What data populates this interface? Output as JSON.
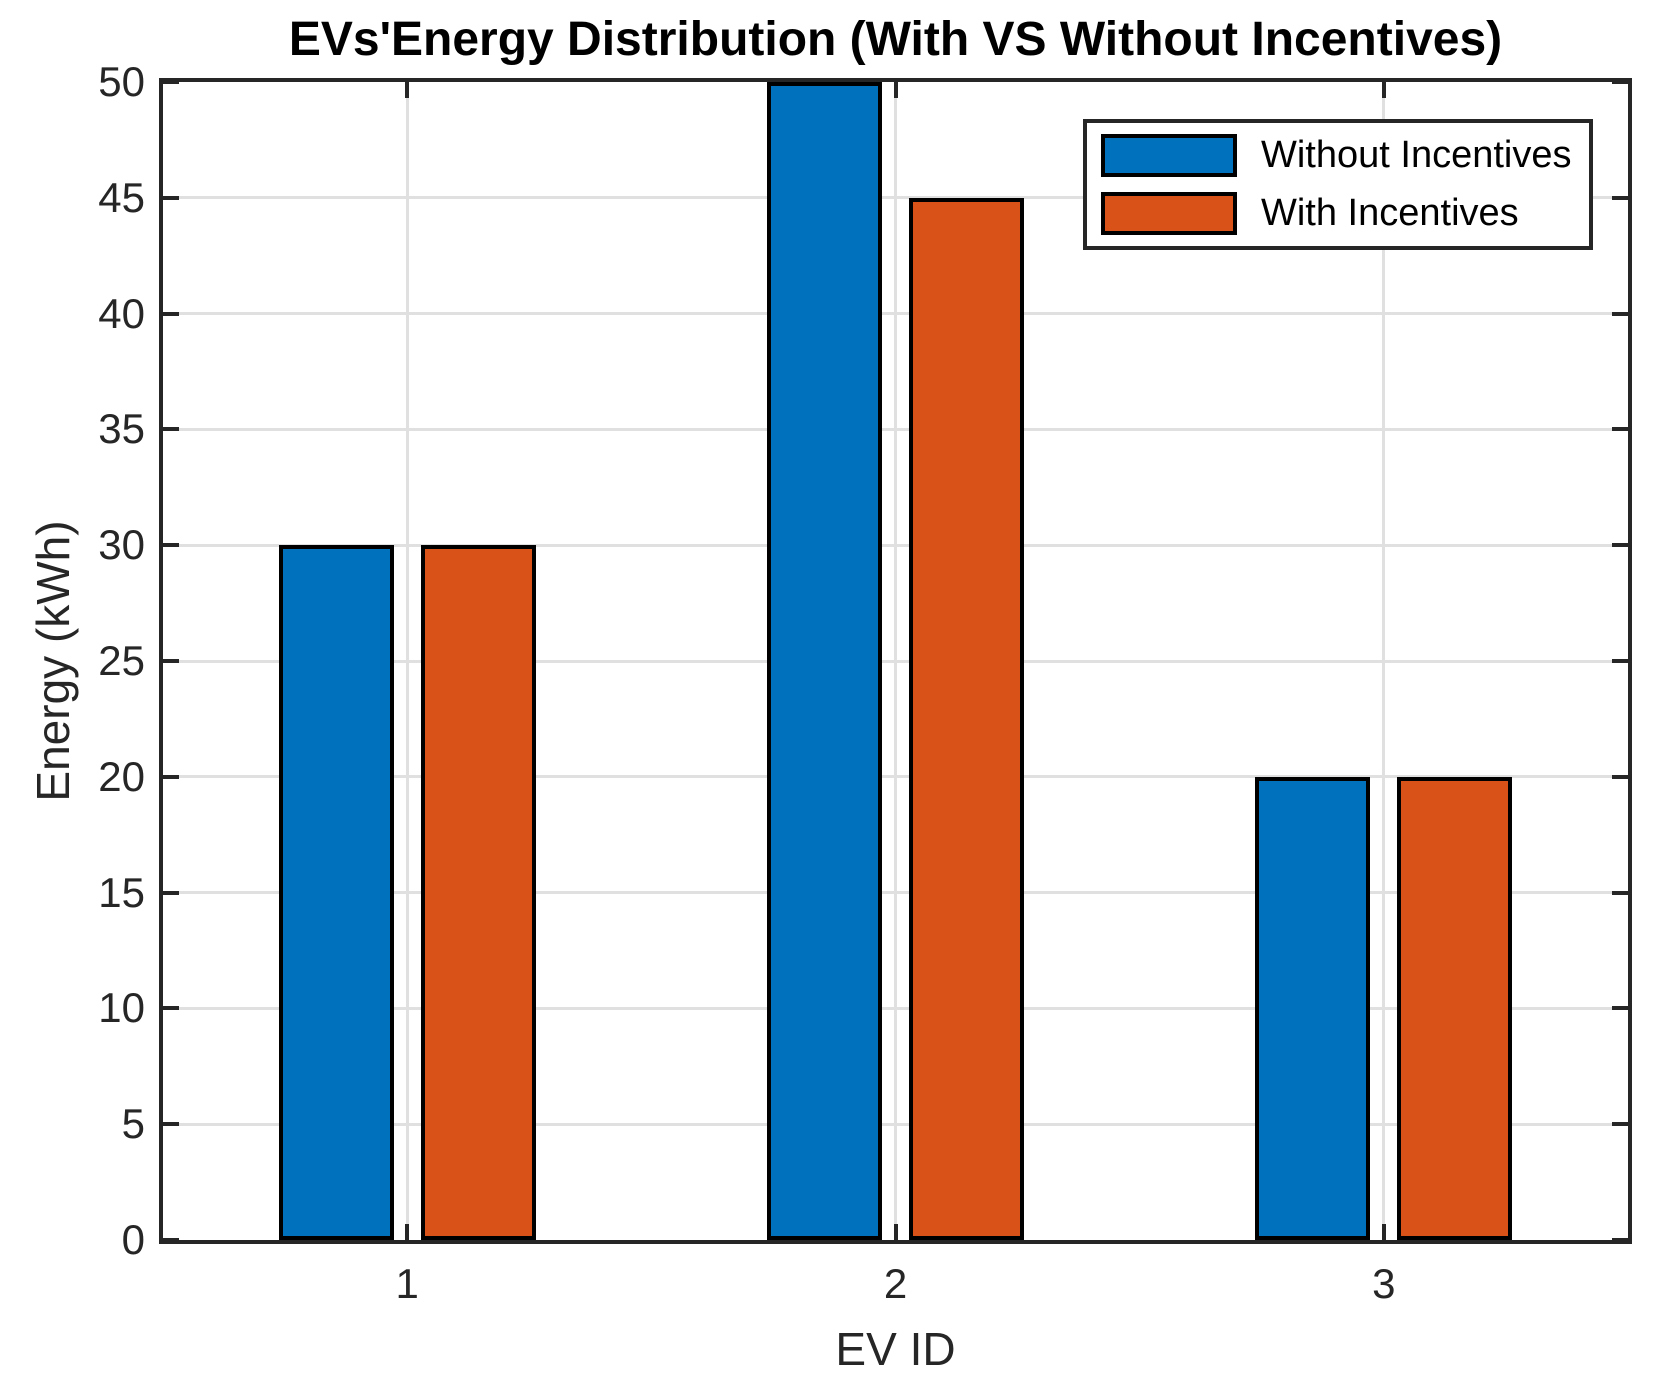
{
  "chart_data": {
    "type": "bar",
    "title": "EVs'Energy Distribution (With VS Without Incentives)",
    "xlabel": "EV ID",
    "ylabel": "Energy (kWh)",
    "categories": [
      "1",
      "2",
      "3"
    ],
    "series": [
      {
        "name": "Without Incentives",
        "color": "#0072BD",
        "values": [
          30,
          50,
          20
        ]
      },
      {
        "name": "With Incentives",
        "color": "#D95319",
        "values": [
          30,
          45,
          20
        ]
      }
    ],
    "ylim": [
      0,
      50
    ],
    "yticks": [
      0,
      5,
      10,
      15,
      20,
      25,
      30,
      35,
      40,
      45,
      50
    ],
    "grid": true,
    "legend_position": "top-right",
    "bar_edge_color": "#000000",
    "grid_color": "#e0e0e0",
    "axis_color": "#262626"
  }
}
